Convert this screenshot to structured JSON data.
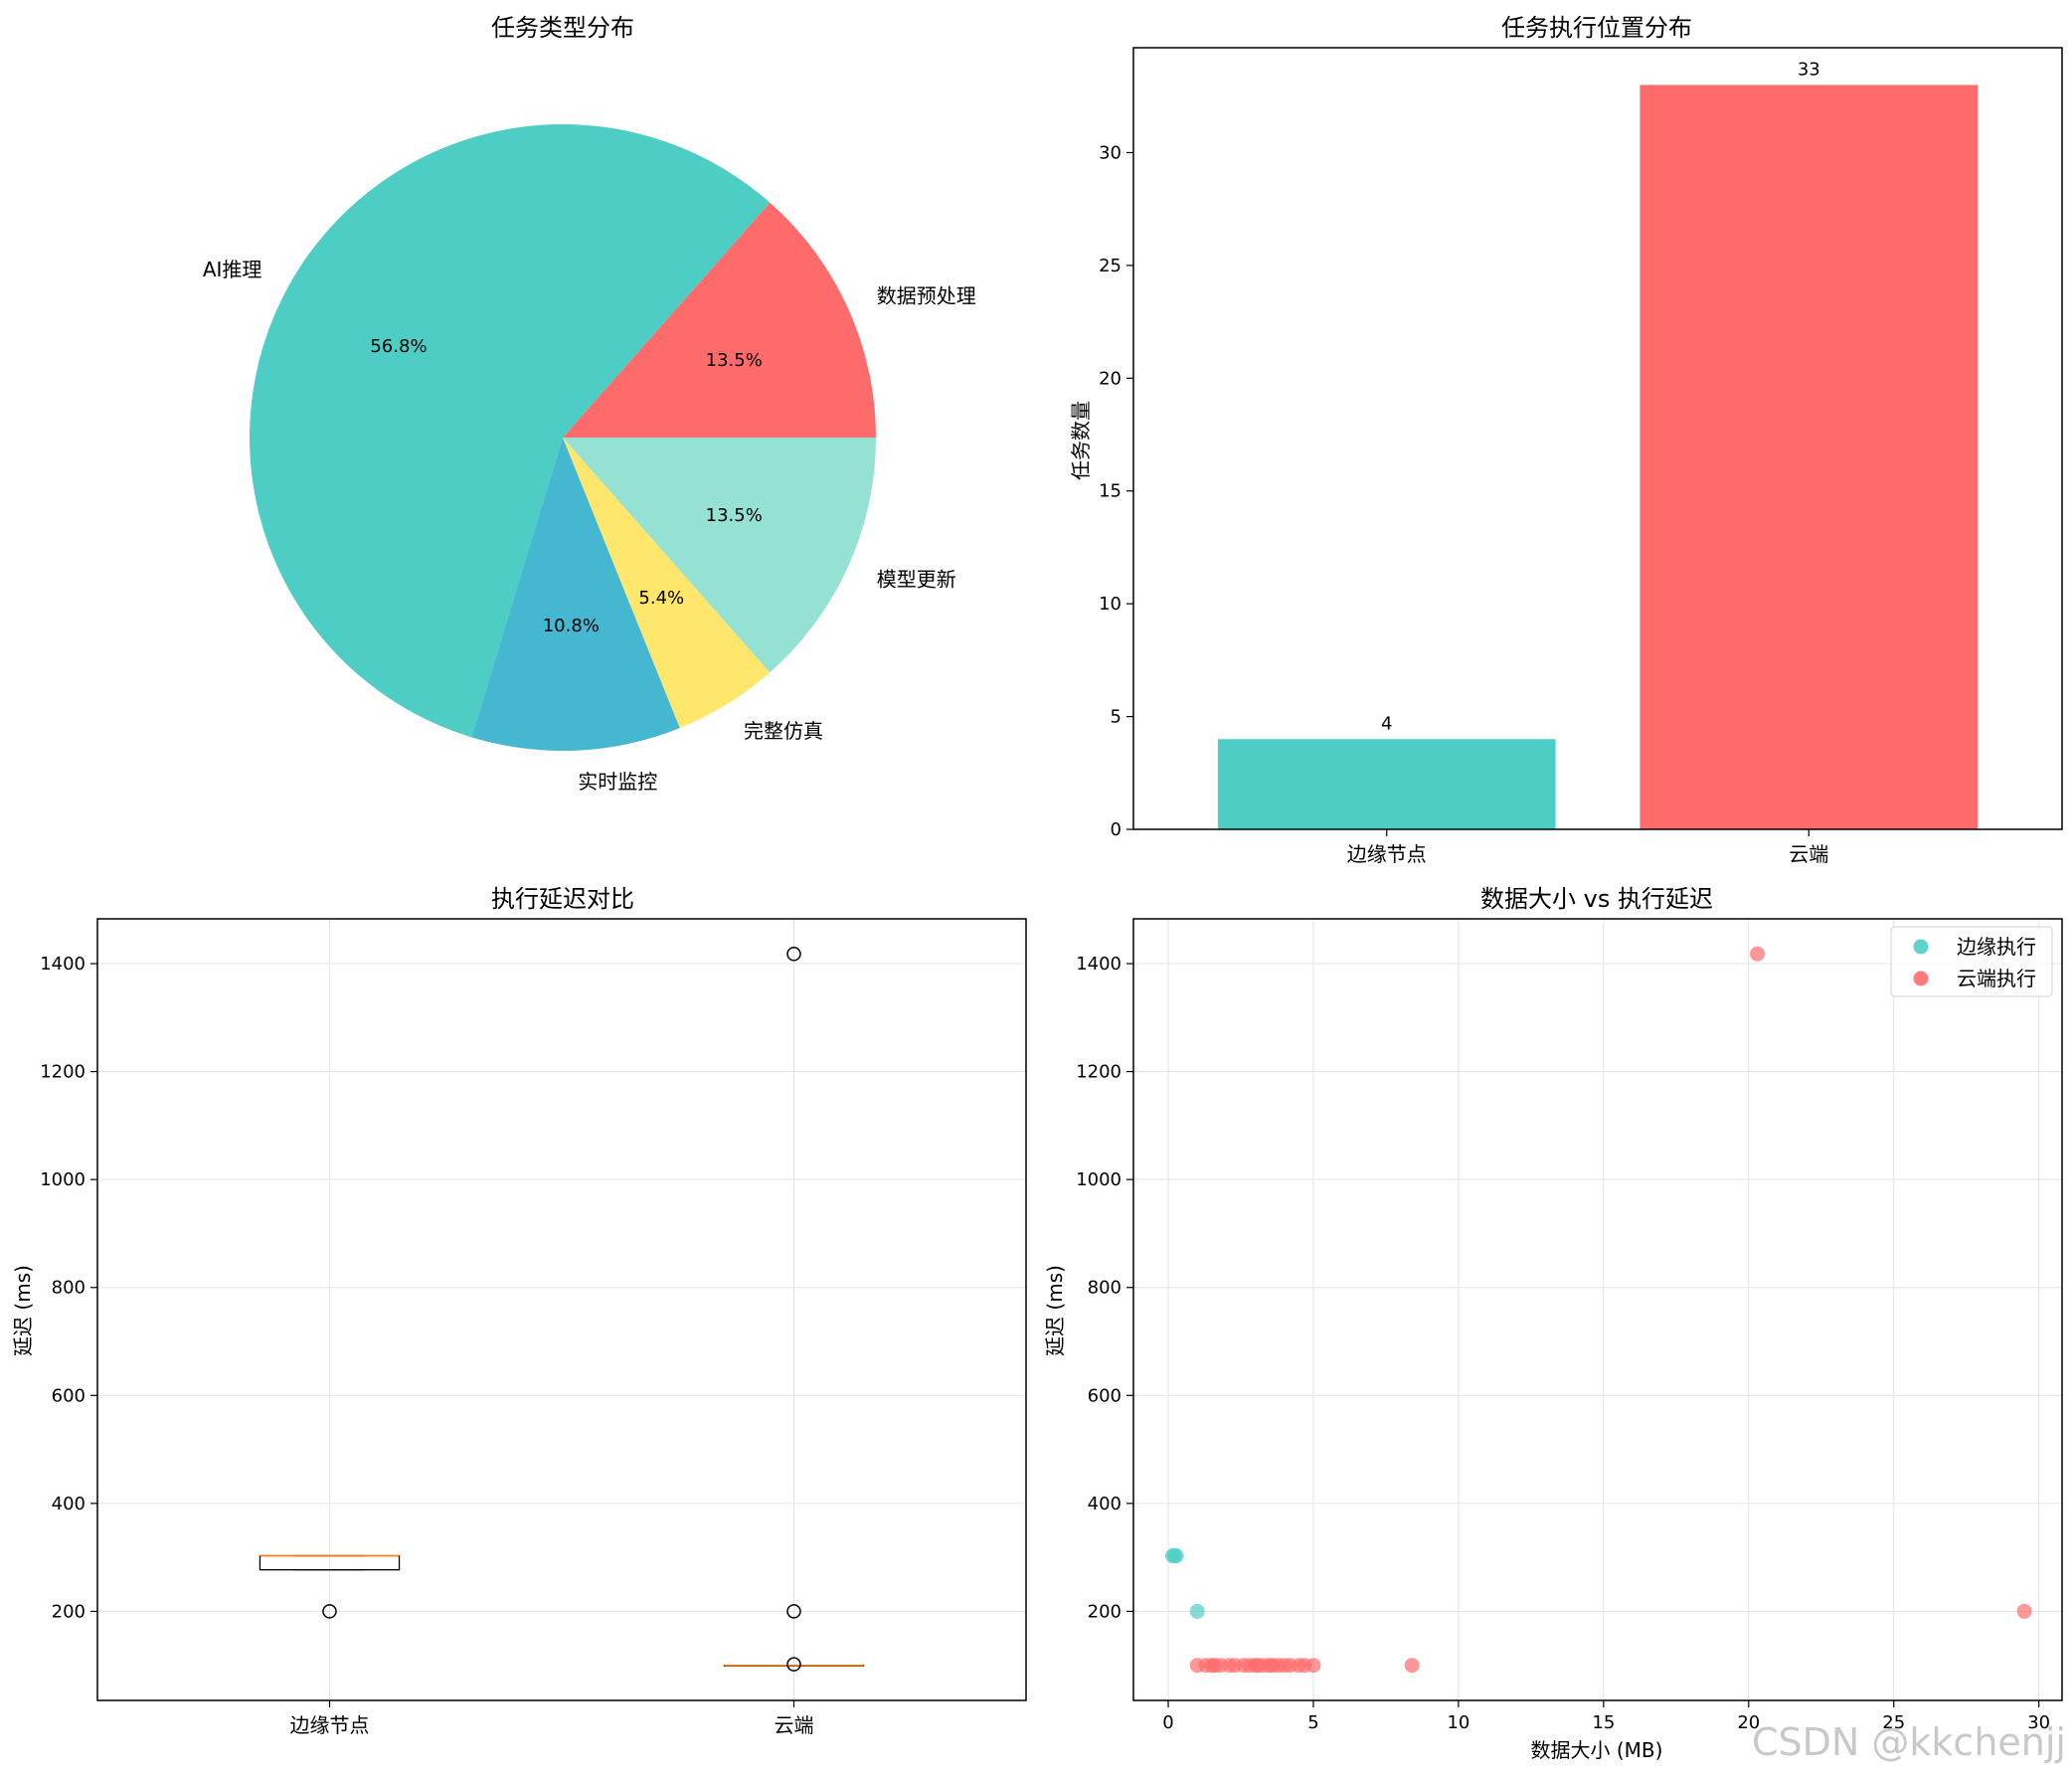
{
  "chart_data": [
    {
      "type": "pie",
      "title": "任务类型分布",
      "labels": [
        "数据预处理",
        "AI推理",
        "实时监控",
        "完整仿真",
        "模型更新"
      ],
      "values": [
        13.5,
        56.8,
        10.8,
        5.4,
        13.5
      ],
      "value_labels": [
        "13.5%",
        "56.8%",
        "10.8%",
        "5.4%",
        "13.5%"
      ],
      "colors": [
        "#FF6B6B",
        "#4ECDC4",
        "#45B7D1",
        "#FFE66D",
        "#95E1D3"
      ]
    },
    {
      "type": "bar",
      "title": "任务执行位置分布",
      "categories": [
        "边缘节点",
        "云端"
      ],
      "values": [
        4,
        33
      ],
      "value_labels": [
        "4",
        "33"
      ],
      "colors": [
        "#4ECDC4",
        "#FF6B6B"
      ],
      "ylabel": "任务数量",
      "ylim": [
        0,
        34.65
      ],
      "yticks": [
        0,
        5,
        10,
        15,
        20,
        25,
        30
      ],
      "ytick_labels": [
        "0",
        "5",
        "10",
        "15",
        "20",
        "25",
        "30"
      ]
    },
    {
      "type": "box",
      "title": "执行延迟对比",
      "categories": [
        "边缘节点",
        "云端"
      ],
      "boxes": [
        {
          "q1": 277,
          "median": 303,
          "q3": 303,
          "whisker_low": 277,
          "whisker_high": 303,
          "outliers": [
            200
          ]
        },
        {
          "q1": 100,
          "median": 100,
          "q3": 100,
          "whisker_low": 100,
          "whisker_high": 100,
          "outliers": [
            1418,
            200,
            102
          ]
        }
      ],
      "ylabel": "延迟 (ms)",
      "ylim": [
        35,
        1483
      ],
      "yticks": [
        200,
        400,
        600,
        800,
        1000,
        1200,
        1400
      ],
      "ytick_labels": [
        "200",
        "400",
        "600",
        "800",
        "1000",
        "1200",
        "1400"
      ],
      "grid": true
    },
    {
      "type": "scatter",
      "title": "数据大小 vs 执行延迟",
      "xlabel": "数据大小 (MB)",
      "ylabel": "延迟 (ms)",
      "xlim": [
        -1.2,
        30.8
      ],
      "ylim": [
        35,
        1483
      ],
      "xticks": [
        0,
        5,
        10,
        15,
        20,
        25,
        30
      ],
      "xtick_labels": [
        "0",
        "5",
        "10",
        "15",
        "20",
        "25",
        "30"
      ],
      "yticks": [
        200,
        400,
        600,
        800,
        1000,
        1200,
        1400
      ],
      "ytick_labels": [
        "200",
        "400",
        "600",
        "800",
        "1000",
        "1200",
        "1400"
      ],
      "grid": true,
      "legend": "upper right",
      "series": [
        {
          "name": "边缘执行",
          "color": "#4ECDC4",
          "points": [
            [
              0.15,
              303
            ],
            [
              0.22,
              303
            ],
            [
              0.28,
              303
            ],
            [
              1.0,
              200
            ]
          ]
        },
        {
          "name": "云端执行",
          "color": "#FF6B6B",
          "points": [
            [
              1.0,
              100
            ],
            [
              1.3,
              100
            ],
            [
              1.5,
              100
            ],
            [
              1.6,
              100
            ],
            [
              1.8,
              100
            ],
            [
              2.1,
              100
            ],
            [
              2.3,
              100
            ],
            [
              2.6,
              100
            ],
            [
              2.8,
              100
            ],
            [
              3.0,
              100
            ],
            [
              3.1,
              100
            ],
            [
              3.3,
              100
            ],
            [
              3.5,
              100
            ],
            [
              3.6,
              100
            ],
            [
              3.8,
              100
            ],
            [
              4.0,
              100
            ],
            [
              4.2,
              100
            ],
            [
              4.5,
              100
            ],
            [
              4.7,
              100
            ],
            [
              5.0,
              100
            ],
            [
              8.4,
              100
            ],
            [
              20.3,
              1418
            ],
            [
              29.5,
              200
            ]
          ]
        }
      ]
    }
  ],
  "watermark": "CSDN @kkchenjj"
}
